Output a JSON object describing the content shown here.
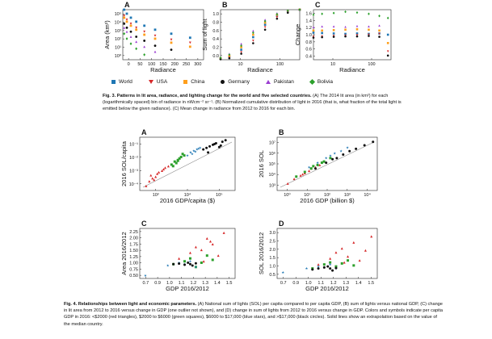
{
  "fig3": {
    "panels": [
      {
        "letter": "A",
        "ylabel": "Area (km²)",
        "xlabel": "Radiance",
        "yticks": [
          "10⁵",
          "10⁴",
          "10³",
          "10²",
          "10¹",
          "10⁰"
        ],
        "xticks": [
          "0",
          "50",
          "100",
          "150",
          "200",
          "250",
          "300"
        ]
      },
      {
        "letter": "B",
        "ylabel": "Sum of light",
        "xlabel": "Radiance",
        "yticks": [
          "1.0",
          "0.8",
          "0.6",
          "0.4",
          "0.2",
          "0.0"
        ],
        "xticks": [
          "10",
          "100"
        ]
      },
      {
        "letter": "C",
        "ylabel": "Change",
        "xlabel": "Radiance",
        "yticks": [
          "1.6",
          "1.4",
          "1.2",
          "1.0",
          "0.8",
          "0.6",
          "0.4"
        ],
        "xticks": [
          "10",
          "100"
        ]
      }
    ],
    "legend": [
      {
        "label": "World",
        "color": "#1f77b4",
        "marker": "square"
      },
      {
        "label": "USA",
        "color": "#d62728",
        "marker": "tri-down"
      },
      {
        "label": "China",
        "color": "#ff9f1c",
        "marker": "square"
      },
      {
        "label": "Germany",
        "color": "#111111",
        "marker": "circle"
      },
      {
        "label": "Pakistan",
        "color": "#9b3dd1",
        "marker": "tri-up"
      },
      {
        "label": "Bolivia",
        "color": "#2ca02c",
        "marker": "diamond"
      }
    ],
    "caption_title": "Fig. 3. Patterns in lit area, radiance, and lighting change for the world and five selected countries.",
    "caption_body": " (A) The 2014 lit area (in km²) for each (logarithmically spaced) bin of radiance in nWcm⁻² sr⁻¹. (B) Normalized cumulative distribution of light in 2016 (that is, what fraction of the total light is emitted below the given radiance). (C) Mean change in radiance from 2012 to 2016 for each bin."
  },
  "fig4": {
    "panels": [
      {
        "letter": "A",
        "ylabel": "2016 SOL/capita",
        "xlabel": "2016 GDP/capita ($)",
        "yticks": [
          "10⁻¹",
          "10⁻²",
          "10⁻³",
          "10⁻⁴"
        ],
        "xticks": [
          "10³",
          "10⁴",
          "10⁵"
        ]
      },
      {
        "letter": "B",
        "ylabel": "2016 SOL",
        "xlabel": "2016 GDP (billion $)",
        "yticks": [
          "10⁷",
          "10⁶",
          "10⁵",
          "10⁴",
          "10³"
        ],
        "xticks": [
          "10⁰",
          "10¹",
          "10²",
          "10³",
          "10⁴"
        ]
      },
      {
        "letter": "C",
        "ylabel": "Area 2016/2012",
        "xlabel": "GDP 2016/2012",
        "yticks": [
          "2.25",
          "2.00",
          "1.75",
          "1.50",
          "1.25",
          "1.00",
          "0.75",
          "0.50"
        ],
        "xticks": [
          "0.7",
          "0.9",
          "1.0",
          "1.1",
          "1.2",
          "1.3",
          "1.4",
          "1.5"
        ]
      },
      {
        "letter": "D",
        "ylabel": "SOL 2016/2012",
        "xlabel": "GDP 2016/2012",
        "yticks": [
          "3.0",
          "2.5",
          "2.0",
          "1.5",
          "1.0",
          "0.5"
        ],
        "xticks": [
          "0.7",
          "0.9",
          "1.0",
          "1.1",
          "1.2",
          "1.3",
          "1.4",
          "1.5"
        ]
      }
    ],
    "caption_title": "Fig. 4. Relationships between light and economic parameters.",
    "caption_body": " (A) National sum of lights (SOL) per capita compared to per capita GDP, (B) sum of lights versus national GDP, (C) change in lit area from 2012 to 2016 versus change in GDP (one outlier not shown), and (D) change in sum of lights from 2012 to 2016 versus change in GDP. Colors and symbols indicate per capita GDP in 2016: <$2000 (red triangles), $2000 to $6000 (green squares), $6000 to $17,000 (blue stars), and >$17,000 (black circles). Solid lines show an extrapolation based on the value of the median country."
  },
  "chart_data": [
    {
      "type": "line",
      "title": "",
      "xlabel": "Radiance",
      "ylabel": "Area (km²)",
      "xlim": [
        0,
        300
      ],
      "ylim_log10": [
        0,
        5
      ],
      "series": [
        {
          "name": "World",
          "x": [
            5,
            15,
            30,
            50,
            80,
            120,
            180,
            250
          ],
          "y_log10": [
            5,
            4.6,
            4.2,
            3.8,
            3.4,
            3.0,
            2.6,
            2.2
          ]
        },
        {
          "name": "USA",
          "x": [
            5,
            15,
            30,
            50,
            80,
            120,
            180,
            250
          ],
          "y_log10": [
            4.4,
            4.0,
            3.6,
            3.2,
            2.8,
            2.4,
            2.0,
            1.7
          ]
        },
        {
          "name": "China",
          "x": [
            5,
            15,
            30,
            50,
            80,
            120,
            180,
            250
          ],
          "y_log10": [
            4.2,
            3.8,
            3.4,
            3.0,
            2.5,
            2.1,
            1.7,
            1.3
          ]
        },
        {
          "name": "Germany",
          "x": [
            5,
            15,
            30,
            50,
            80,
            120,
            180
          ],
          "y_log10": [
            3.6,
            3.2,
            2.8,
            2.3,
            1.9,
            1.4,
            1.0
          ]
        },
        {
          "name": "Pakistan",
          "x": [
            5,
            15,
            30,
            50,
            80,
            120
          ],
          "y_log10": [
            3.2,
            2.8,
            2.3,
            1.8,
            1.3,
            0.8
          ]
        },
        {
          "name": "Bolivia",
          "x": [
            5,
            15,
            30,
            50,
            80
          ],
          "y_log10": [
            2.6,
            2.1,
            1.6,
            1.1,
            0.5
          ]
        }
      ]
    },
    {
      "type": "line",
      "title": "",
      "xlabel": "Radiance",
      "ylabel": "Sum of light",
      "xscale": "log",
      "xlim": [
        3,
        300
      ],
      "ylim": [
        0,
        1
      ],
      "series": [
        {
          "name": "World",
          "x": [
            3,
            5,
            10,
            20,
            40,
            80,
            150,
            300
          ],
          "y": [
            0.02,
            0.06,
            0.2,
            0.45,
            0.7,
            0.88,
            0.96,
            1.0
          ]
        },
        {
          "name": "USA",
          "x": [
            3,
            5,
            10,
            20,
            40,
            80,
            150,
            300
          ],
          "y": [
            0.01,
            0.04,
            0.15,
            0.38,
            0.65,
            0.85,
            0.95,
            1.0
          ]
        },
        {
          "name": "China",
          "x": [
            3,
            5,
            10,
            20,
            40,
            80,
            150,
            300
          ],
          "y": [
            0.03,
            0.08,
            0.25,
            0.5,
            0.74,
            0.9,
            0.97,
            1.0
          ]
        },
        {
          "name": "Germany",
          "x": [
            3,
            5,
            10,
            20,
            40,
            80,
            150,
            300
          ],
          "y": [
            0.01,
            0.03,
            0.12,
            0.33,
            0.6,
            0.82,
            0.94,
            1.0
          ]
        },
        {
          "name": "Pakistan",
          "x": [
            3,
            5,
            10,
            20,
            40,
            80,
            150,
            300
          ],
          "y": [
            0.05,
            0.12,
            0.32,
            0.58,
            0.8,
            0.93,
            0.98,
            1.0
          ]
        },
        {
          "name": "Bolivia",
          "x": [
            3,
            5,
            10,
            20,
            40,
            80,
            150,
            300
          ],
          "y": [
            0.04,
            0.1,
            0.28,
            0.54,
            0.77,
            0.91,
            0.98,
            1.0
          ]
        }
      ]
    },
    {
      "type": "scatter",
      "title": "",
      "xlabel": "Radiance",
      "ylabel": "Change",
      "xscale": "log",
      "xlim": [
        3,
        300
      ],
      "ylim": [
        0.4,
        1.6
      ],
      "series": [
        {
          "name": "World",
          "x": [
            3,
            5,
            10,
            20,
            40,
            80,
            150,
            250
          ],
          "y": [
            1.05,
            1.04,
            1.03,
            1.02,
            1.03,
            1.02,
            1.03,
            1.0
          ]
        },
        {
          "name": "USA",
          "x": [
            3,
            5,
            10,
            20,
            40,
            80,
            150,
            250
          ],
          "y": [
            0.95,
            0.96,
            0.97,
            0.98,
            0.99,
            1.0,
            1.02,
            0.6
          ]
        },
        {
          "name": "China",
          "x": [
            3,
            5,
            10,
            20,
            40,
            80,
            150,
            250
          ],
          "y": [
            1.1,
            1.1,
            1.11,
            1.12,
            1.13,
            1.12,
            1.1,
            0.8
          ]
        },
        {
          "name": "Germany",
          "x": [
            3,
            5,
            10,
            20,
            40,
            80,
            150,
            250
          ],
          "y": [
            0.93,
            0.94,
            0.95,
            0.96,
            0.96,
            0.97,
            0.95,
            0.5
          ]
        },
        {
          "name": "Pakistan",
          "x": [
            3,
            5,
            10,
            20,
            40,
            80,
            150
          ],
          "y": [
            1.18,
            1.2,
            1.2,
            1.19,
            1.21,
            1.2,
            1.22
          ]
        },
        {
          "name": "Bolivia",
          "x": [
            3,
            5,
            10,
            20,
            40,
            80,
            150,
            250
          ],
          "y": [
            1.48,
            1.5,
            1.52,
            1.55,
            1.53,
            1.5,
            1.45,
            1.4
          ]
        }
      ]
    },
    {
      "type": "scatter",
      "title": "",
      "xlabel": "2016 GDP/capita ($)",
      "ylabel": "2016 SOL/capita",
      "xscale": "log",
      "yscale": "log",
      "xlim_log10": [
        2.3,
        5.3
      ],
      "ylim_log10": [
        -4.3,
        -0.8
      ],
      "series": [
        {
          "name": "<$2000",
          "x_log10": [
            2.5,
            2.6,
            2.7,
            2.8,
            2.9,
            3.0,
            3.1,
            3.2,
            2.65,
            2.85,
            3.05,
            2.75
          ],
          "y_log10": [
            -4.0,
            -3.7,
            -3.5,
            -3.4,
            -3.1,
            -3.0,
            -2.8,
            -2.7,
            -3.3,
            -3.2,
            -2.9,
            -3.6
          ]
        },
        {
          "name": "$2000 to $6000",
          "x_log10": [
            3.3,
            3.4,
            3.5,
            3.6,
            3.7,
            3.45,
            3.55,
            3.65,
            3.35,
            3.5
          ],
          "y_log10": [
            -2.6,
            -2.4,
            -2.3,
            -2.1,
            -2.0,
            -2.5,
            -2.2,
            -1.9,
            -2.7,
            -2.35
          ]
        },
        {
          "name": "$6000 to $17,000",
          "x_log10": [
            3.8,
            3.9,
            4.0,
            4.1,
            4.2,
            3.95,
            4.05,
            4.15
          ],
          "y_log10": [
            -2.0,
            -1.8,
            -1.7,
            -1.6,
            -1.5,
            -1.9,
            -1.75,
            -1.55
          ]
        },
        {
          "name": ">$17,000",
          "x_log10": [
            4.3,
            4.4,
            4.5,
            4.6,
            4.7,
            4.8,
            4.9,
            5.0,
            4.45,
            4.65,
            4.85
          ],
          "y_log10": [
            -1.6,
            -1.5,
            -1.4,
            -1.3,
            -1.2,
            -1.45,
            -1.1,
            -1.0,
            -1.8,
            -1.25,
            -1.35
          ]
        }
      ]
    },
    {
      "type": "scatter",
      "title": "",
      "xlabel": "2016 GDP (billion $)",
      "ylabel": "2016 SOL",
      "xscale": "log",
      "yscale": "log",
      "xlim_log10": [
        -0.3,
        4.4
      ],
      "ylim_log10": [
        2.6,
        7.2
      ],
      "series": [
        {
          "name": "<$2000",
          "x_log10": [
            0.2,
            0.5,
            0.8,
            1.0,
            1.2,
            1.5,
            1.7,
            0.9,
            1.3
          ],
          "y_log10": [
            3.2,
            3.6,
            3.9,
            4.1,
            4.3,
            4.6,
            4.8,
            4.0,
            4.5
          ]
        },
        {
          "name": "$2000 to $6000",
          "x_log10": [
            0.6,
            1.0,
            1.3,
            1.6,
            1.9,
            2.2,
            1.4,
            1.8
          ],
          "y_log10": [
            3.8,
            4.2,
            4.5,
            4.8,
            5.1,
            5.4,
            4.7,
            5.0
          ]
        },
        {
          "name": "$6000 to $17,000",
          "x_log10": [
            1.2,
            1.6,
            2.0,
            2.4,
            2.7,
            3.0,
            2.2
          ],
          "y_log10": [
            4.6,
            5.0,
            5.4,
            5.8,
            6.0,
            6.3,
            5.6
          ]
        },
        {
          "name": ">$17,000",
          "x_log10": [
            1.5,
            2.0,
            2.5,
            2.8,
            3.1,
            3.4,
            3.8,
            4.2,
            2.3
          ],
          "y_log10": [
            4.5,
            5.0,
            5.4,
            5.7,
            6.0,
            6.2,
            6.5,
            6.8,
            5.3
          ]
        }
      ]
    },
    {
      "type": "scatter",
      "title": "",
      "xlabel": "GDP 2016/2012",
      "ylabel": "Area 2016/2012",
      "xlim": [
        0.65,
        1.5
      ],
      "ylim": [
        0.5,
        2.25
      ],
      "series": [
        {
          "name": "<$2000",
          "x": [
            1.0,
            1.1,
            1.15,
            1.2,
            1.25,
            1.3,
            1.35,
            1.4,
            1.22,
            1.28
          ],
          "y": [
            1.2,
            1.4,
            1.6,
            1.5,
            1.9,
            1.7,
            1.3,
            2.1,
            1.1,
            1.8
          ]
        },
        {
          "name": "$2000 to $6000",
          "x": [
            0.95,
            1.05,
            1.1,
            1.15,
            1.2,
            1.25,
            1.3
          ],
          "y": [
            1.0,
            1.1,
            1.2,
            0.9,
            1.05,
            1.3,
            1.15
          ]
        },
        {
          "name": "$6000 to $17,000",
          "x": [
            0.7,
            0.9,
            1.0,
            1.05,
            1.1,
            1.15
          ],
          "y": [
            0.6,
            0.95,
            1.05,
            1.0,
            1.1,
            0.9
          ]
        },
        {
          "name": ">$17,000",
          "x": [
            0.95,
            1.0,
            1.05,
            1.08,
            1.1,
            1.12,
            1.15
          ],
          "y": [
            1.0,
            1.02,
            0.98,
            1.05,
            1.0,
            0.95,
            1.03
          ]
        }
      ]
    },
    {
      "type": "scatter",
      "title": "",
      "xlabel": "GDP 2016/2012",
      "ylabel": "SOL 2016/2012",
      "xlim": [
        0.65,
        1.5
      ],
      "ylim": [
        0.5,
        3.0
      ],
      "series": [
        {
          "name": "<$2000",
          "x": [
            1.0,
            1.1,
            1.15,
            1.2,
            1.25,
            1.3,
            1.35,
            1.4,
            1.45,
            1.22
          ],
          "y": [
            1.2,
            1.5,
            1.8,
            2.0,
            1.6,
            2.3,
            1.4,
            1.9,
            2.6,
            1.3
          ]
        },
        {
          "name": "$2000 to $6000",
          "x": [
            0.95,
            1.05,
            1.1,
            1.15,
            1.2,
            1.25,
            1.3
          ],
          "y": [
            1.0,
            1.2,
            1.3,
            1.1,
            1.25,
            1.4,
            1.15
          ]
        },
        {
          "name": "$6000 to $17,000",
          "x": [
            0.7,
            0.9,
            1.0,
            1.05,
            1.1,
            1.15
          ],
          "y": [
            0.8,
            1.0,
            1.1,
            1.05,
            1.2,
            1.0
          ]
        },
        {
          "name": ">$17,000",
          "x": [
            0.95,
            1.0,
            1.05,
            1.08,
            1.1,
            1.12,
            1.15
          ],
          "y": [
            0.95,
            1.0,
            1.05,
            1.1,
            1.0,
            0.9,
            1.02
          ]
        }
      ]
    }
  ]
}
